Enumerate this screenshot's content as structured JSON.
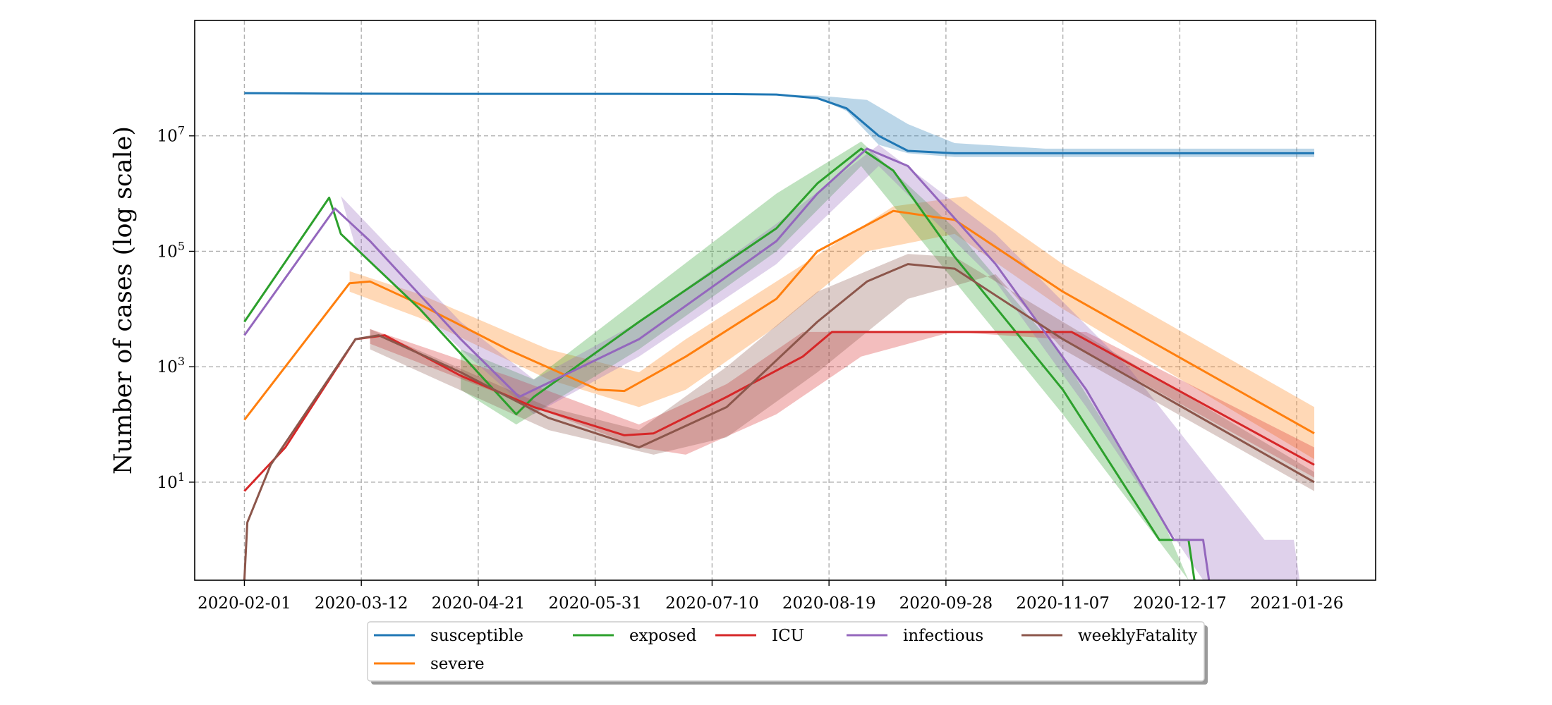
{
  "chart_data": {
    "type": "line",
    "title": "",
    "xlabel": "",
    "ylabel": "Number of cases (log scale)",
    "y_scale": "log",
    "ylim": [
      0.2,
      1000000000.0
    ],
    "xlim": [
      "2020-01-15",
      "2021-02-22"
    ],
    "grid": true,
    "legend_position": "bottom-center",
    "x_ticks": [
      "2020-02-01",
      "2020-03-12",
      "2020-04-21",
      "2020-05-31",
      "2020-07-10",
      "2020-08-19",
      "2020-09-28",
      "2020-11-07",
      "2020-12-17",
      "2021-01-26"
    ],
    "y_ticks": [
      {
        "value": 10,
        "base": "10",
        "exp": "1"
      },
      {
        "value": 1000,
        "base": "10",
        "exp": "3"
      },
      {
        "value": 100000,
        "base": "10",
        "exp": "5"
      },
      {
        "value": 10000000,
        "base": "10",
        "exp": "7"
      }
    ],
    "series": [
      {
        "name": "susceptible",
        "color": "#1f77b4",
        "points": [
          [
            "2020-02-01",
            55000000
          ],
          [
            "2020-03-01",
            54000000
          ],
          [
            "2020-04-15",
            53500000
          ],
          [
            "2020-06-01",
            53500000
          ],
          [
            "2020-07-15",
            53000000
          ],
          [
            "2020-08-01",
            52000000
          ],
          [
            "2020-08-15",
            45000000
          ],
          [
            "2020-08-25",
            30000000
          ],
          [
            "2020-09-05",
            10000000
          ],
          [
            "2020-09-15",
            5500000
          ],
          [
            "2020-10-01",
            5000000
          ],
          [
            "2021-02-01",
            5000000
          ]
        ],
        "band_lower": [
          [
            "2020-02-01",
            55000000
          ],
          [
            "2020-08-01",
            52000000
          ],
          [
            "2020-08-15",
            45000000
          ],
          [
            "2020-08-25",
            27000000
          ],
          [
            "2020-09-05",
            7000000
          ],
          [
            "2020-09-15",
            5000000
          ],
          [
            "2020-10-01",
            4300000
          ],
          [
            "2021-02-01",
            4300000
          ]
        ],
        "band_upper": [
          [
            "2020-02-01",
            55000000
          ],
          [
            "2020-08-01",
            52000000
          ],
          [
            "2020-08-15",
            50000000
          ],
          [
            "2020-09-01",
            42000000
          ],
          [
            "2020-09-15",
            16000000
          ],
          [
            "2020-10-01",
            7500000
          ],
          [
            "2020-11-01",
            6000000
          ],
          [
            "2021-02-01",
            6000000
          ]
        ]
      },
      {
        "name": "severe",
        "color": "#ff7f0e",
        "points": [
          [
            "2020-02-01",
            120
          ],
          [
            "2020-03-08",
            28000
          ],
          [
            "2020-03-15",
            30000
          ],
          [
            "2020-04-01",
            12000
          ],
          [
            "2020-05-01",
            2000
          ],
          [
            "2020-06-01",
            400
          ],
          [
            "2020-06-10",
            380
          ],
          [
            "2020-07-01",
            1500
          ],
          [
            "2020-08-01",
            15000
          ],
          [
            "2020-08-15",
            100000
          ],
          [
            "2020-09-10",
            500000
          ],
          [
            "2020-10-01",
            350000
          ],
          [
            "2020-11-07",
            20000
          ],
          [
            "2021-02-01",
            70
          ]
        ],
        "band_lower": [
          [
            "2020-03-08",
            20000
          ],
          [
            "2020-04-01",
            7000
          ],
          [
            "2020-05-15",
            600
          ],
          [
            "2020-06-15",
            200
          ],
          [
            "2020-07-01",
            400
          ],
          [
            "2020-08-01",
            5000
          ],
          [
            "2020-09-01",
            100000
          ],
          [
            "2020-10-01",
            200000
          ],
          [
            "2020-11-07",
            10000
          ],
          [
            "2021-02-01",
            25
          ]
        ],
        "band_upper": [
          [
            "2020-03-08",
            45000
          ],
          [
            "2020-04-01",
            18000
          ],
          [
            "2020-05-15",
            2000
          ],
          [
            "2020-06-15",
            800
          ],
          [
            "2020-07-01",
            3000
          ],
          [
            "2020-08-01",
            30000
          ],
          [
            "2020-09-10",
            600000
          ],
          [
            "2020-10-05",
            900000
          ],
          [
            "2020-11-07",
            60000
          ],
          [
            "2021-02-01",
            200
          ]
        ]
      },
      {
        "name": "exposed",
        "color": "#2ca02c",
        "points": [
          [
            "2020-02-01",
            6000
          ],
          [
            "2020-03-01",
            850000
          ],
          [
            "2020-03-05",
            200000
          ],
          [
            "2020-04-01",
            10000
          ],
          [
            "2020-05-04",
            150
          ],
          [
            "2020-05-10",
            300
          ],
          [
            "2020-06-15",
            6000
          ],
          [
            "2020-08-01",
            250000
          ],
          [
            "2020-08-15",
            1500000
          ],
          [
            "2020-08-30",
            6000000
          ],
          [
            "2020-09-10",
            2500000
          ],
          [
            "2020-10-01",
            80000
          ],
          [
            "2020-11-07",
            400
          ],
          [
            "2020-12-10",
            1
          ],
          [
            "2020-12-20",
            1
          ],
          [
            "2020-12-22",
            0.2
          ]
        ],
        "band_lower": [
          [
            "2020-04-15",
            400
          ],
          [
            "2020-05-04",
            100
          ],
          [
            "2020-06-15",
            2000
          ],
          [
            "2020-08-01",
            100000
          ],
          [
            "2020-08-30",
            3000000
          ],
          [
            "2020-10-01",
            30000
          ],
          [
            "2020-11-07",
            150
          ],
          [
            "2020-12-20",
            0.2
          ]
        ],
        "band_upper": [
          [
            "2020-04-15",
            2000
          ],
          [
            "2020-05-10",
            600
          ],
          [
            "2020-06-15",
            15000
          ],
          [
            "2020-08-01",
            1000000
          ],
          [
            "2020-08-30",
            8000000
          ],
          [
            "2020-10-01",
            250000
          ],
          [
            "2020-11-07",
            1500
          ],
          [
            "2020-12-10",
            3
          ]
        ]
      },
      {
        "name": "ICU",
        "color": "#d62728",
        "points": [
          [
            "2020-02-01",
            7
          ],
          [
            "2020-02-15",
            40
          ],
          [
            "2020-03-10",
            3000
          ],
          [
            "2020-03-20",
            3500
          ],
          [
            "2020-04-15",
            700
          ],
          [
            "2020-05-10",
            200
          ],
          [
            "2020-06-10",
            65
          ],
          [
            "2020-06-20",
            70
          ],
          [
            "2020-07-15",
            300
          ],
          [
            "2020-08-10",
            1500
          ],
          [
            "2020-08-20",
            4000
          ],
          [
            "2020-11-10",
            4000
          ],
          [
            "2021-02-01",
            20
          ]
        ],
        "band_lower": [
          [
            "2020-03-15",
            2500
          ],
          [
            "2020-05-01",
            300
          ],
          [
            "2020-06-15",
            40
          ],
          [
            "2020-07-01",
            30
          ],
          [
            "2020-08-01",
            150
          ],
          [
            "2020-08-30",
            1500
          ],
          [
            "2020-09-30",
            4000
          ],
          [
            "2020-11-07",
            3000
          ],
          [
            "2021-02-01",
            12
          ]
        ],
        "band_upper": [
          [
            "2020-03-15",
            4500
          ],
          [
            "2020-05-01",
            700
          ],
          [
            "2020-06-15",
            100
          ],
          [
            "2020-07-15",
            500
          ],
          [
            "2020-08-10",
            4000
          ],
          [
            "2020-08-20",
            4000
          ],
          [
            "2020-11-15",
            4000
          ],
          [
            "2021-02-01",
            40
          ]
        ]
      },
      {
        "name": "infectious",
        "color": "#9467bd",
        "points": [
          [
            "2020-02-01",
            3500
          ],
          [
            "2020-03-03",
            550000
          ],
          [
            "2020-03-15",
            150000
          ],
          [
            "2020-04-15",
            3000
          ],
          [
            "2020-05-05",
            300
          ],
          [
            "2020-06-15",
            3000
          ],
          [
            "2020-08-01",
            150000
          ],
          [
            "2020-08-15",
            1000000
          ],
          [
            "2020-09-01",
            6000000
          ],
          [
            "2020-09-15",
            3000000
          ],
          [
            "2020-10-15",
            60000
          ],
          [
            "2020-11-15",
            400
          ],
          [
            "2020-12-15",
            1
          ],
          [
            "2020-12-25",
            1
          ],
          [
            "2020-12-27",
            0.2
          ]
        ],
        "band_lower": [
          [
            "2020-03-10",
            120000
          ],
          [
            "2020-04-15",
            2000
          ],
          [
            "2020-05-10",
            150
          ],
          [
            "2020-06-15",
            1500
          ],
          [
            "2020-08-01",
            60000
          ],
          [
            "2020-09-05",
            3000000
          ],
          [
            "2020-10-15",
            30000
          ],
          [
            "2020-11-15",
            200
          ],
          [
            "2020-12-25",
            0.2
          ]
        ],
        "band_upper": [
          [
            "2020-03-05",
            900000
          ],
          [
            "2020-04-15",
            6000
          ],
          [
            "2020-05-10",
            600
          ],
          [
            "2020-06-15",
            6000
          ],
          [
            "2020-08-01",
            300000
          ],
          [
            "2020-09-05",
            7000000
          ],
          [
            "2020-10-15",
            200000
          ],
          [
            "2020-11-30",
            900
          ],
          [
            "2021-01-15",
            1
          ],
          [
            "2021-01-25",
            1
          ],
          [
            "2021-01-27",
            0.2
          ]
        ]
      },
      {
        "name": "weeklyFatality",
        "color": "#8c564b",
        "points": [
          [
            "2020-02-01",
            0.2
          ],
          [
            "2020-02-02",
            2
          ],
          [
            "2020-02-10",
            20
          ],
          [
            "2020-03-10",
            3000
          ],
          [
            "2020-03-18",
            3500
          ],
          [
            "2020-04-15",
            800
          ],
          [
            "2020-05-15",
            130
          ],
          [
            "2020-06-15",
            40
          ],
          [
            "2020-07-15",
            200
          ],
          [
            "2020-08-15",
            6000
          ],
          [
            "2020-09-01",
            30000
          ],
          [
            "2020-09-15",
            60000
          ],
          [
            "2020-10-01",
            50000
          ],
          [
            "2020-11-07",
            3000
          ],
          [
            "2021-02-01",
            10
          ]
        ],
        "band_lower": [
          [
            "2020-03-15",
            2000
          ],
          [
            "2020-05-15",
            80
          ],
          [
            "2020-06-20",
            30
          ],
          [
            "2020-07-15",
            60
          ],
          [
            "2020-08-15",
            800
          ],
          [
            "2020-09-15",
            15000
          ],
          [
            "2020-10-15",
            40000
          ],
          [
            "2020-11-07",
            2000
          ],
          [
            "2021-02-01",
            7
          ]
        ],
        "band_upper": [
          [
            "2020-03-15",
            4500
          ],
          [
            "2020-05-15",
            200
          ],
          [
            "2020-06-15",
            80
          ],
          [
            "2020-07-15",
            1000
          ],
          [
            "2020-08-15",
            20000
          ],
          [
            "2020-09-15",
            90000
          ],
          [
            "2020-10-01",
            80000
          ],
          [
            "2020-11-07",
            6000
          ],
          [
            "2021-02-01",
            15
          ]
        ]
      }
    ],
    "legend": {
      "rows": [
        [
          "susceptible",
          "exposed",
          "ICU",
          "infectious",
          "weeklyFatality"
        ],
        [
          "severe"
        ]
      ]
    }
  }
}
